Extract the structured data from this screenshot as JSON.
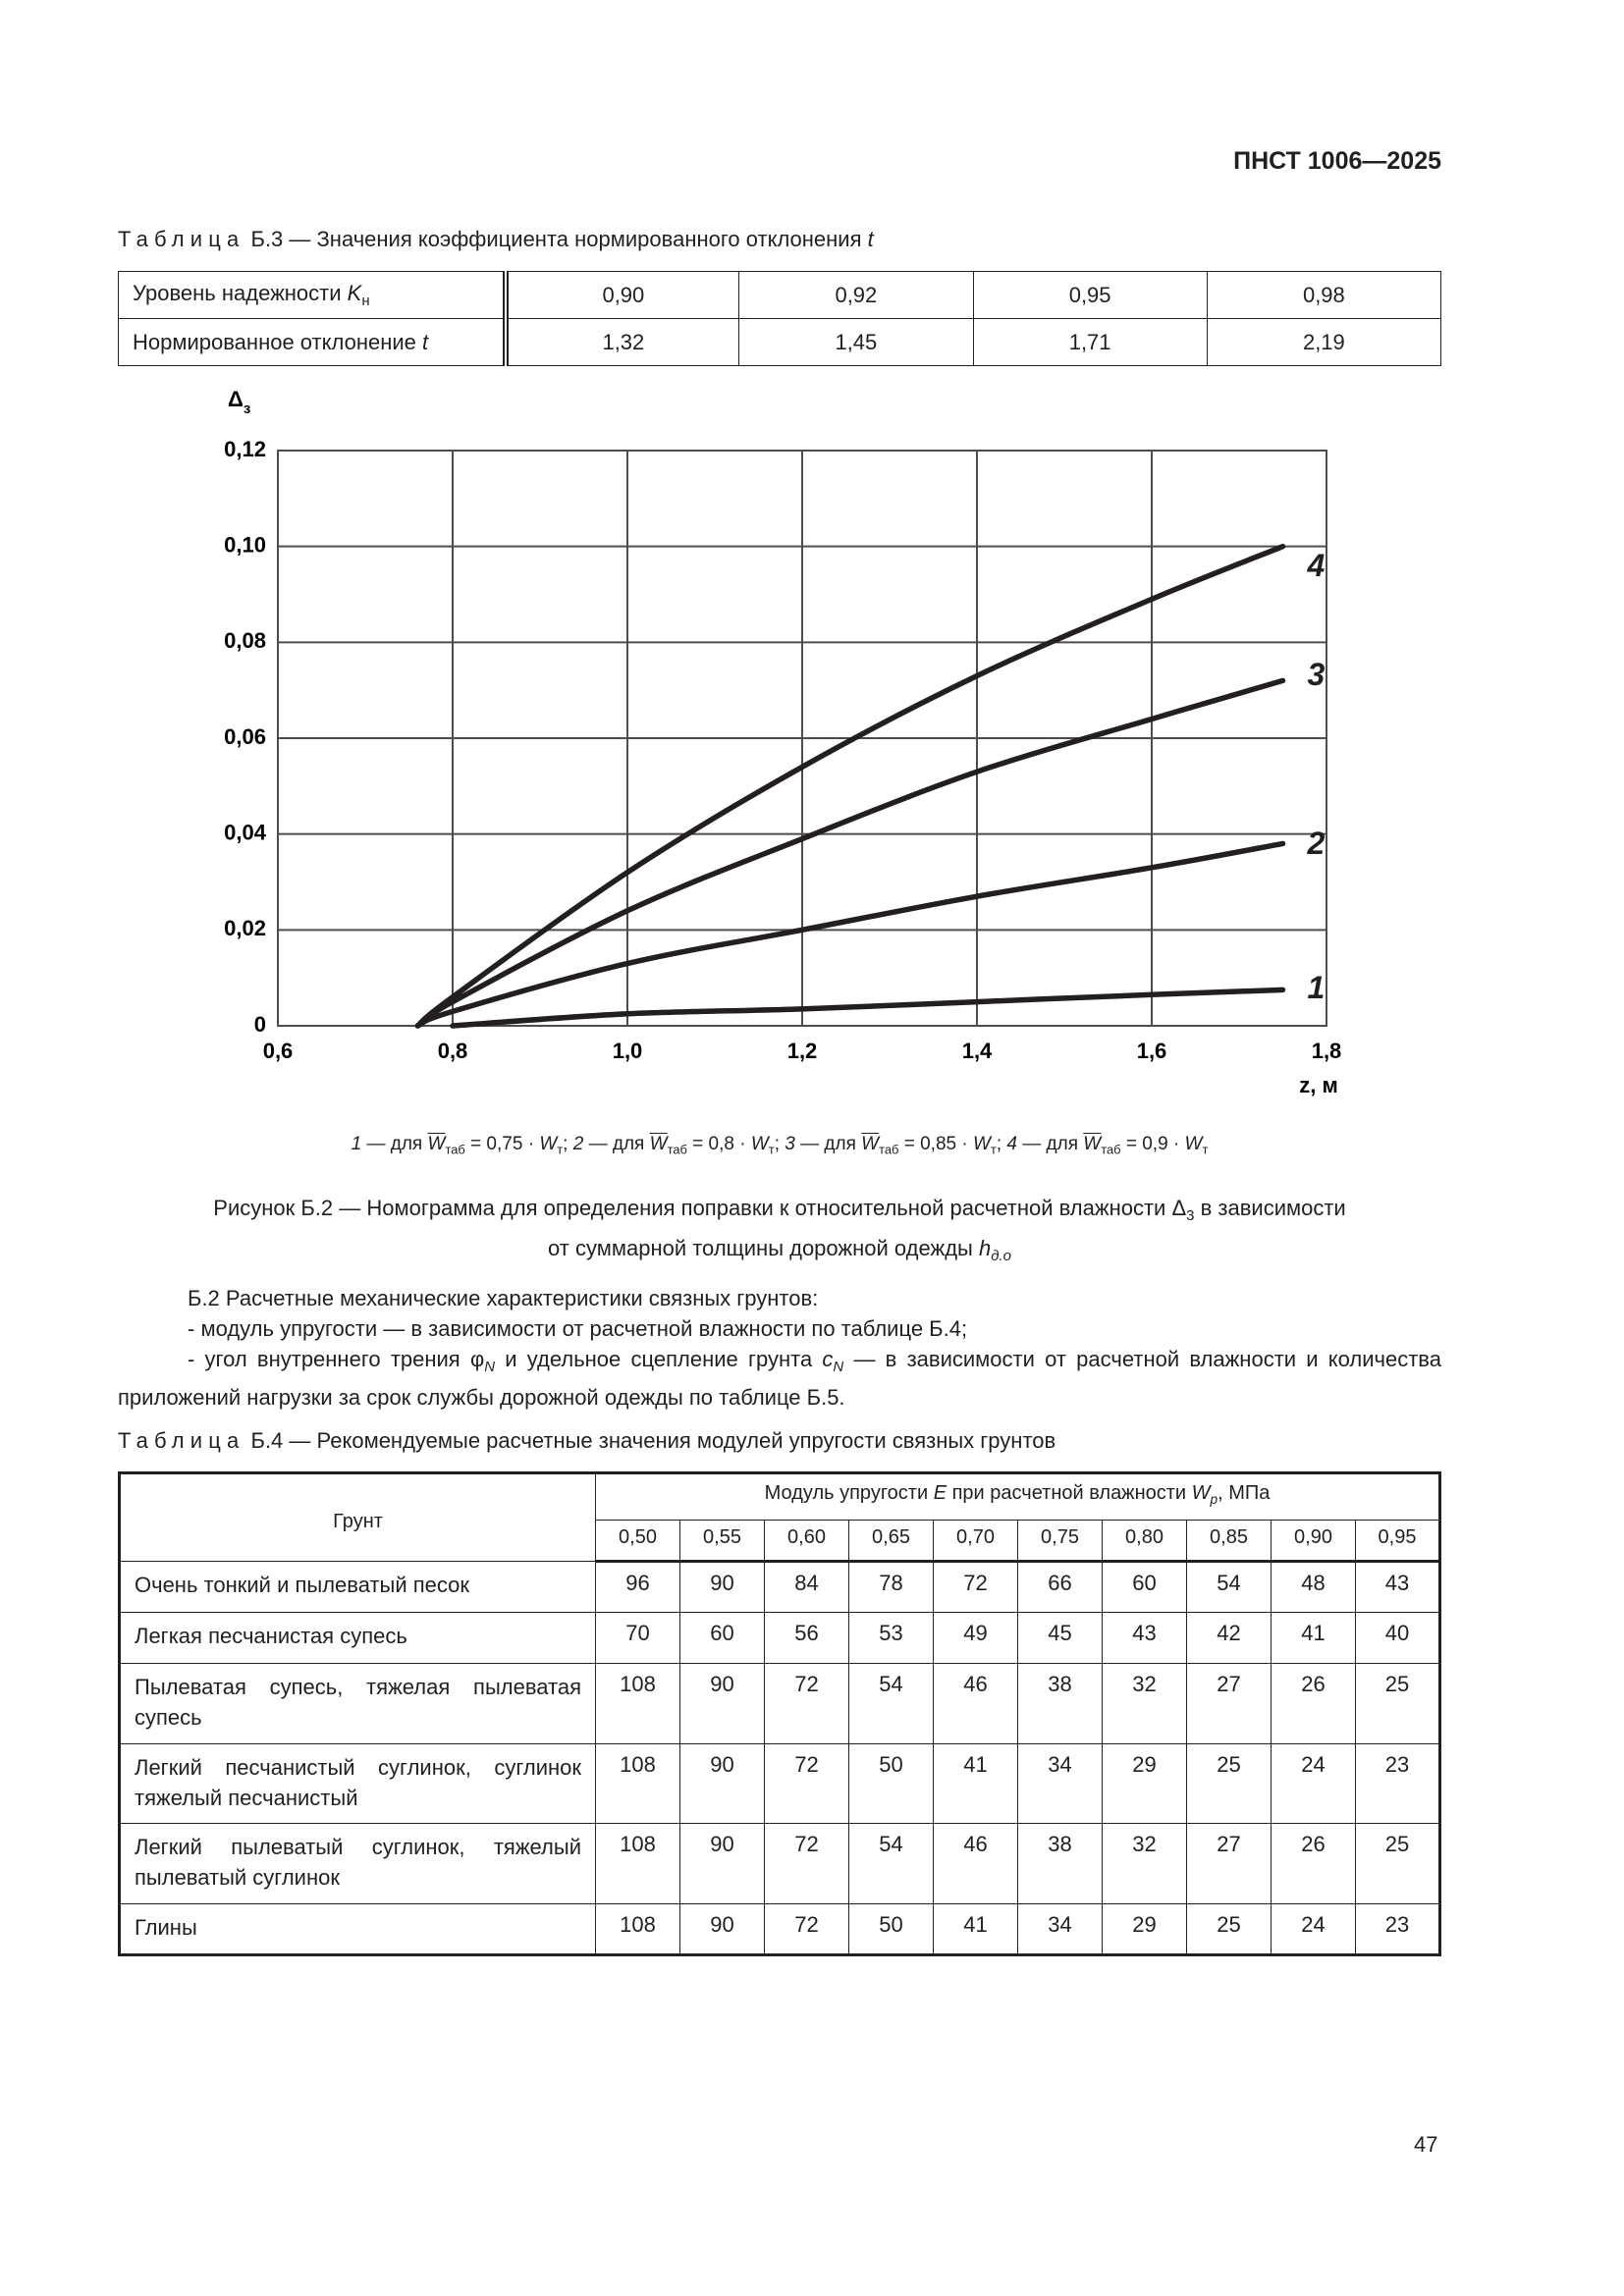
{
  "header": {
    "doc_id": "ПНСТ 1006—2025"
  },
  "table_b3": {
    "caption": [
      "Таблица",
      " Б.3 — Значения коэффициента нормированного отклонения ",
      "t"
    ],
    "rows": [
      {
        "label": [
          "Уровень надежности ",
          "K",
          "н"
        ],
        "values": [
          "0,90",
          "0,92",
          "0,95",
          "0,98"
        ]
      },
      {
        "label": [
          "Нормированное отклонение ",
          "t"
        ],
        "values": [
          "1,32",
          "1,45",
          "1,71",
          "2,19"
        ]
      }
    ]
  },
  "chart_data": {
    "type": "line",
    "y_label": [
      "Δ",
      "з"
    ],
    "x_label": "z, м",
    "xlim": [
      0.6,
      1.8
    ],
    "xticks": [
      {
        "value": 0.6,
        "label": "0,6"
      },
      {
        "value": 0.8,
        "label": "0,8"
      },
      {
        "value": 1.0,
        "label": "1,0"
      },
      {
        "value": 1.2,
        "label": "1,2"
      },
      {
        "value": 1.4,
        "label": "1,4"
      },
      {
        "value": 1.6,
        "label": "1,6"
      },
      {
        "value": 1.8,
        "label": "1,8"
      }
    ],
    "ylim": [
      0,
      0.12
    ],
    "yticks": [
      0,
      {
        "value": 0.02,
        "label": "0,02"
      },
      {
        "value": 0.04,
        "label": "0,04"
      },
      {
        "value": 0.06,
        "label": "0,06"
      },
      {
        "value": 0.08,
        "label": "0,08"
      },
      {
        "value": 0.1,
        "label": "0,10"
      },
      {
        "value": 0.12,
        "label": "0,12"
      }
    ],
    "grid": true,
    "series": [
      {
        "name": "1",
        "color": "#231f20",
        "x": [
          0.8,
          1.0,
          1.2,
          1.4,
          1.6,
          1.75
        ],
        "values": [
          0,
          0.0025,
          0.0035,
          0.005,
          0.0065,
          0.0075
        ]
      },
      {
        "name": "2",
        "color": "#231f20",
        "x": [
          0.76,
          0.8,
          1.0,
          1.2,
          1.4,
          1.6,
          1.75
        ],
        "values": [
          0,
          0.003,
          0.013,
          0.02,
          0.027,
          0.033,
          0.038
        ]
      },
      {
        "name": "3",
        "color": "#231f20",
        "x": [
          0.76,
          0.8,
          1.0,
          1.2,
          1.4,
          1.6,
          1.75
        ],
        "values": [
          0,
          0.005,
          0.024,
          0.039,
          0.053,
          0.064,
          0.072
        ]
      },
      {
        "name": "4",
        "color": "#231f20",
        "x": [
          0.76,
          0.8,
          1.0,
          1.2,
          1.4,
          1.6,
          1.75
        ],
        "values": [
          0,
          0.006,
          0.032,
          0.054,
          0.073,
          0.089,
          0.1
        ]
      }
    ],
    "legend_note": [
      [
        "1",
        " — для ",
        "W",
        "таб",
        " = 0,75 · ",
        "W",
        "т",
        "; "
      ],
      [
        "2",
        " — для ",
        "W",
        "таб",
        " = 0,8 · ",
        "W",
        "т",
        "; "
      ],
      [
        "3",
        " — для ",
        "W",
        "таб",
        " = 0,85 · ",
        "W",
        "т",
        "; "
      ],
      [
        "4",
        " — для ",
        "W",
        "таб",
        " = 0,9 · ",
        "W",
        "т"
      ]
    ]
  },
  "figure_caption": [
    "Рисунок Б.2 — Номограмма для определения поправки к относительной расчетной влажности ",
    "Δ",
    "3",
    " в зависимости",
    "от суммарной толщины дорожной одежды ",
    "h",
    "д.о"
  ],
  "paragraph_b2": {
    "intro": "Б.2 Расчетные механические характеристики связных грунтов:",
    "item1": "- модуль упругости — в зависимости от расчетной влажности по таблице Б.4;",
    "item2": [
      "- угол внутреннего трения ",
      "φ",
      "N",
      " и удельное сцепление грунта ",
      "c",
      "N",
      " — в зависимости от расчетной влажности и количества приложений нагрузки за срок службы дорожной одежды по таблице Б.5."
    ]
  },
  "table_b4": {
    "caption": [
      "Таблица",
      " Б.4 — Рекомендуемые расчетные значения модулей упругости связных грунтов"
    ],
    "header_first": "Грунт",
    "header_group": [
      "Модуль упругости ",
      "E",
      " при расчетной влажности ",
      "W",
      "p",
      ", МПа"
    ],
    "moisture": [
      "0,50",
      "0,55",
      "0,60",
      "0,65",
      "0,70",
      "0,75",
      "0,80",
      "0,85",
      "0,90",
      "0,95"
    ],
    "rows": [
      {
        "soil": "Очень тонкий и пылеватый песок",
        "values": [
          96,
          90,
          84,
          78,
          72,
          66,
          60,
          54,
          48,
          43
        ]
      },
      {
        "soil": "Легкая песчанистая супесь",
        "values": [
          70,
          60,
          56,
          53,
          49,
          45,
          43,
          42,
          41,
          40
        ]
      },
      {
        "soil": "Пылеватая супесь, тяжелая пылеватая супесь",
        "values": [
          108,
          90,
          72,
          54,
          46,
          38,
          32,
          27,
          26,
          25
        ]
      },
      {
        "soil": "Легкий песчанистый суглинок, суглинок тяжелый песчанистый",
        "values": [
          108,
          90,
          72,
          50,
          41,
          34,
          29,
          25,
          24,
          23
        ]
      },
      {
        "soil": "Легкий пылеватый суглинок, тяжелый пылеватый суглинок",
        "values": [
          108,
          90,
          72,
          54,
          46,
          38,
          32,
          27,
          26,
          25
        ]
      },
      {
        "soil": "Глины",
        "values": [
          108,
          90,
          72,
          50,
          41,
          34,
          29,
          25,
          24,
          23
        ]
      }
    ]
  },
  "page_number": "47"
}
